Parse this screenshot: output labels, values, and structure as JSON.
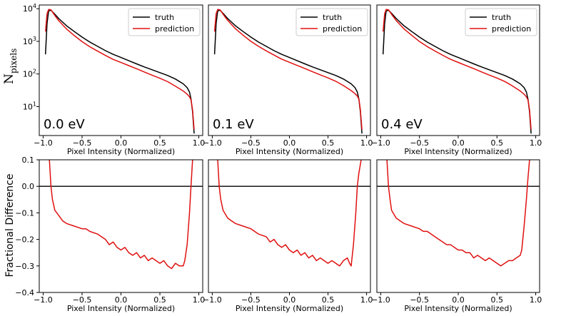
{
  "figure": {
    "top_ylabel_main": "N",
    "top_ylabel_sub": "pixels",
    "bottom_ylabel": "Fractional Difference"
  },
  "chart_data": [
    {
      "type": "line",
      "panel": "top",
      "energy_label": "0.0 eV",
      "xlabel": "Pixel Intensity (Normalized)",
      "yscale": "log",
      "xlim": [
        -1.05,
        1.05
      ],
      "ylim": [
        1.3,
        13000
      ],
      "xticks": [
        "−1.0",
        "−0.5",
        "0.0",
        "0.5",
        "1.0"
      ],
      "xtick_values": [
        -1.0,
        -0.5,
        0.0,
        0.5,
        1.0
      ],
      "yticks": [
        "10",
        "10",
        "10",
        "10"
      ],
      "ytick_exponents": [
        "1",
        "2",
        "3",
        "4"
      ],
      "ytick_values": [
        10,
        100,
        1000,
        10000
      ],
      "legend": {
        "position": "top-right",
        "entries": [
          "truth",
          "prediction"
        ]
      },
      "series": [
        {
          "name": "truth",
          "color": "#000000",
          "x": [
            -0.97,
            -0.95,
            -0.93,
            -0.9,
            -0.85,
            -0.8,
            -0.7,
            -0.6,
            -0.5,
            -0.4,
            -0.3,
            -0.2,
            -0.1,
            0.0,
            0.1,
            0.2,
            0.3,
            0.4,
            0.5,
            0.6,
            0.7,
            0.8,
            0.85,
            0.88,
            0.9,
            0.92,
            0.94
          ],
          "y": [
            400,
            3500,
            8500,
            9000,
            6800,
            5000,
            3000,
            2000,
            1350,
            950,
            700,
            520,
            400,
            320,
            255,
            205,
            165,
            135,
            110,
            90,
            70,
            50,
            38,
            28,
            17,
            7,
            1.5
          ]
        },
        {
          "name": "prediction",
          "color": "#e01010",
          "x": [
            -0.97,
            -0.95,
            -0.93,
            -0.9,
            -0.85,
            -0.8,
            -0.7,
            -0.6,
            -0.5,
            -0.4,
            -0.3,
            -0.2,
            -0.1,
            0.0,
            0.1,
            0.2,
            0.3,
            0.4,
            0.5,
            0.6,
            0.7,
            0.8,
            0.85,
            0.88,
            0.9,
            0.92,
            0.94
          ],
          "y": [
            2000,
            7000,
            9500,
            9300,
            6200,
            4300,
            2400,
            1500,
            980,
            680,
            500,
            370,
            280,
            225,
            180,
            145,
            115,
            92,
            74,
            58,
            42,
            30,
            24,
            20,
            16,
            8,
            2
          ]
        }
      ]
    },
    {
      "type": "line",
      "panel": "top",
      "energy_label": "0.1 eV",
      "xlabel": "Pixel Intensity (Normalized)",
      "yscale": "log",
      "xlim": [
        -1.05,
        1.05
      ],
      "ylim": [
        1.3,
        13000
      ],
      "xticks": [
        "−1.0",
        "−0.5",
        "0.0",
        "0.5",
        "1.0"
      ],
      "xtick_values": [
        -1.0,
        -0.5,
        0.0,
        0.5,
        1.0
      ],
      "legend": {
        "position": "top-right",
        "entries": [
          "truth",
          "prediction"
        ]
      },
      "series": [
        {
          "name": "truth",
          "color": "#000000",
          "x": [
            -0.97,
            -0.95,
            -0.93,
            -0.9,
            -0.85,
            -0.8,
            -0.7,
            -0.6,
            -0.5,
            -0.4,
            -0.3,
            -0.2,
            -0.1,
            0.0,
            0.1,
            0.2,
            0.3,
            0.4,
            0.5,
            0.6,
            0.7,
            0.8,
            0.85,
            0.88,
            0.9,
            0.92,
            0.94
          ],
          "y": [
            400,
            3500,
            8500,
            9000,
            6800,
            5000,
            3000,
            2000,
            1350,
            950,
            700,
            520,
            400,
            320,
            255,
            205,
            165,
            135,
            110,
            90,
            70,
            50,
            38,
            28,
            17,
            7,
            1.5
          ]
        },
        {
          "name": "prediction",
          "color": "#e01010",
          "x": [
            -0.97,
            -0.95,
            -0.93,
            -0.9,
            -0.85,
            -0.8,
            -0.7,
            -0.6,
            -0.5,
            -0.4,
            -0.3,
            -0.2,
            -0.1,
            0.0,
            0.1,
            0.2,
            0.3,
            0.4,
            0.5,
            0.6,
            0.7,
            0.8,
            0.85,
            0.88,
            0.9,
            0.92,
            0.94
          ],
          "y": [
            2000,
            7000,
            9500,
            9300,
            6300,
            4400,
            2450,
            1550,
            1000,
            700,
            510,
            380,
            285,
            228,
            183,
            147,
            117,
            94,
            76,
            60,
            44,
            31,
            25,
            21,
            17,
            8,
            2
          ]
        }
      ]
    },
    {
      "type": "line",
      "panel": "top",
      "energy_label": "0.4 eV",
      "xlabel": "Pixel Intensity (Normalized)",
      "yscale": "log",
      "xlim": [
        -1.05,
        1.05
      ],
      "ylim": [
        1.3,
        13000
      ],
      "xticks": [
        "−1.0",
        "−0.5",
        "0.0",
        "0.5",
        "1.0"
      ],
      "xtick_values": [
        -1.0,
        -0.5,
        0.0,
        0.5,
        1.0
      ],
      "legend": {
        "position": "top-right",
        "entries": [
          "truth",
          "prediction"
        ]
      },
      "series": [
        {
          "name": "truth",
          "color": "#000000",
          "x": [
            -0.97,
            -0.95,
            -0.93,
            -0.9,
            -0.85,
            -0.8,
            -0.7,
            -0.6,
            -0.5,
            -0.4,
            -0.3,
            -0.2,
            -0.1,
            0.0,
            0.1,
            0.2,
            0.3,
            0.4,
            0.5,
            0.6,
            0.7,
            0.8,
            0.85,
            0.88,
            0.9,
            0.92,
            0.94
          ],
          "y": [
            400,
            3500,
            8500,
            9000,
            6800,
            5000,
            3000,
            2000,
            1350,
            950,
            700,
            520,
            400,
            320,
            255,
            205,
            165,
            135,
            110,
            90,
            70,
            50,
            38,
            28,
            17,
            7,
            1.5
          ]
        },
        {
          "name": "prediction",
          "color": "#e01010",
          "x": [
            -0.97,
            -0.95,
            -0.93,
            -0.9,
            -0.85,
            -0.8,
            -0.7,
            -0.6,
            -0.5,
            -0.4,
            -0.3,
            -0.2,
            -0.1,
            0.0,
            0.1,
            0.2,
            0.3,
            0.4,
            0.5,
            0.6,
            0.7,
            0.8,
            0.85,
            0.88,
            0.9,
            0.92,
            0.94
          ],
          "y": [
            2000,
            7000,
            9500,
            9300,
            6250,
            4350,
            2420,
            1520,
            990,
            690,
            505,
            375,
            282,
            226,
            181,
            146,
            116,
            93,
            75,
            59,
            43,
            30,
            24,
            20,
            16,
            8,
            2
          ]
        }
      ]
    },
    {
      "type": "line",
      "panel": "bottom",
      "xlabel": "Pixel Intensity (Normalized)",
      "ylabel": "",
      "xlim": [
        -1.05,
        1.05
      ],
      "ylim": [
        -0.4,
        0.1
      ],
      "xticks": [
        "−1.0",
        "−0.5",
        "0.0",
        "0.5",
        "1.0"
      ],
      "xtick_values": [
        -1.0,
        -0.5,
        0.0,
        0.5,
        1.0
      ],
      "yticks": [
        "0.1",
        "0.0",
        "−0.1",
        "−0.2",
        "−0.3",
        "−0.4"
      ],
      "ytick_values": [
        0.1,
        0.0,
        -0.1,
        -0.2,
        -0.3,
        -0.4
      ],
      "reference_line": 0.0,
      "series": [
        {
          "color": "#e01010",
          "x": [
            -0.92,
            -0.9,
            -0.88,
            -0.85,
            -0.8,
            -0.75,
            -0.7,
            -0.6,
            -0.5,
            -0.45,
            -0.4,
            -0.3,
            -0.25,
            -0.2,
            -0.15,
            -0.1,
            -0.05,
            0.0,
            0.05,
            0.1,
            0.15,
            0.2,
            0.25,
            0.3,
            0.35,
            0.4,
            0.45,
            0.5,
            0.55,
            0.6,
            0.65,
            0.7,
            0.75,
            0.8,
            0.82,
            0.85,
            0.88,
            0.9,
            0.92
          ],
          "y": [
            0.1,
            0.0,
            -0.05,
            -0.09,
            -0.11,
            -0.13,
            -0.14,
            -0.15,
            -0.16,
            -0.16,
            -0.17,
            -0.18,
            -0.19,
            -0.2,
            -0.22,
            -0.21,
            -0.23,
            -0.24,
            -0.23,
            -0.25,
            -0.26,
            -0.25,
            -0.27,
            -0.26,
            -0.28,
            -0.27,
            -0.28,
            -0.29,
            -0.28,
            -0.3,
            -0.31,
            -0.29,
            -0.3,
            -0.3,
            -0.28,
            -0.22,
            -0.1,
            0.0,
            0.1
          ]
        }
      ]
    },
    {
      "type": "line",
      "panel": "bottom",
      "xlabel": "Pixel Intensity (Normalized)",
      "xlim": [
        -1.05,
        1.05
      ],
      "ylim": [
        -0.4,
        0.1
      ],
      "xticks": [
        "−1.0",
        "−0.5",
        "0.0",
        "0.5",
        "1.0"
      ],
      "xtick_values": [
        -1.0,
        -0.5,
        0.0,
        0.5,
        1.0
      ],
      "reference_line": 0.0,
      "series": [
        {
          "color": "#e01010",
          "x": [
            -0.93,
            -0.91,
            -0.89,
            -0.86,
            -0.8,
            -0.75,
            -0.7,
            -0.6,
            -0.5,
            -0.4,
            -0.3,
            -0.25,
            -0.2,
            -0.15,
            -0.1,
            -0.05,
            0.0,
            0.05,
            0.1,
            0.15,
            0.2,
            0.25,
            0.3,
            0.35,
            0.4,
            0.45,
            0.5,
            0.55,
            0.6,
            0.65,
            0.7,
            0.75,
            0.78,
            0.8,
            0.83,
            0.86,
            0.88,
            0.9,
            0.93
          ],
          "y": [
            0.1,
            0.0,
            -0.05,
            -0.09,
            -0.12,
            -0.13,
            -0.14,
            -0.15,
            -0.16,
            -0.18,
            -0.19,
            -0.21,
            -0.2,
            -0.22,
            -0.23,
            -0.22,
            -0.24,
            -0.25,
            -0.24,
            -0.26,
            -0.25,
            -0.27,
            -0.26,
            -0.28,
            -0.27,
            -0.28,
            -0.29,
            -0.28,
            -0.29,
            -0.3,
            -0.28,
            -0.27,
            -0.29,
            -0.3,
            -0.22,
            -0.1,
            0.0,
            0.05,
            0.1
          ]
        }
      ]
    },
    {
      "type": "line",
      "panel": "bottom",
      "xlabel": "Pixel Intensity (Normalized)",
      "xlim": [
        -1.05,
        1.05
      ],
      "ylim": [
        -0.4,
        0.1
      ],
      "xticks": [
        "−1.0",
        "−0.5",
        "0.0",
        "0.5",
        "1.0"
      ],
      "xtick_values": [
        -1.0,
        -0.5,
        0.0,
        0.5,
        1.0
      ],
      "reference_line": 0.0,
      "series": [
        {
          "color": "#e01010",
          "x": [
            -0.92,
            -0.9,
            -0.88,
            -0.86,
            -0.8,
            -0.75,
            -0.7,
            -0.6,
            -0.5,
            -0.45,
            -0.4,
            -0.3,
            -0.25,
            -0.2,
            -0.15,
            -0.1,
            -0.05,
            0.0,
            0.05,
            0.1,
            0.15,
            0.2,
            0.25,
            0.3,
            0.35,
            0.4,
            0.45,
            0.5,
            0.55,
            0.6,
            0.65,
            0.7,
            0.75,
            0.8,
            0.82,
            0.85,
            0.88,
            0.9,
            0.92
          ],
          "y": [
            0.1,
            0.0,
            -0.05,
            -0.09,
            -0.12,
            -0.13,
            -0.14,
            -0.15,
            -0.16,
            -0.17,
            -0.17,
            -0.19,
            -0.2,
            -0.21,
            -0.22,
            -0.22,
            -0.23,
            -0.24,
            -0.24,
            -0.25,
            -0.25,
            -0.27,
            -0.26,
            -0.27,
            -0.28,
            -0.27,
            -0.28,
            -0.29,
            -0.3,
            -0.29,
            -0.28,
            -0.28,
            -0.27,
            -0.26,
            -0.24,
            -0.15,
            -0.05,
            0.03,
            0.1
          ]
        }
      ]
    }
  ]
}
